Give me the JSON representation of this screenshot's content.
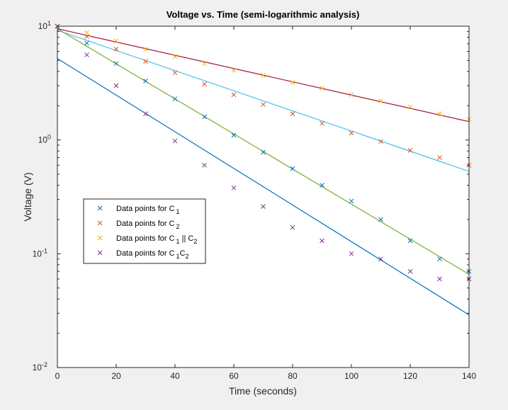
{
  "chart_data": {
    "type": "scatter",
    "title": "Voltage vs. Time (semi-logarithmic analysis)",
    "xlabel": "Time (seconds)",
    "ylabel": "Voltage (V)",
    "xlim": [
      0,
      140
    ],
    "ylim": [
      0.01,
      10
    ],
    "yscale": "log",
    "grid": false,
    "legend_position": "center-left",
    "x_ticks": [
      0,
      20,
      40,
      60,
      80,
      100,
      120,
      140
    ],
    "y_ticks": [
      {
        "base": "10",
        "exp": "-2",
        "value": 0.01
      },
      {
        "base": "10",
        "exp": "-1",
        "value": 0.1
      },
      {
        "base": "10",
        "exp": "0",
        "value": 1
      },
      {
        "base": "10",
        "exp": "1",
        "value": 10
      }
    ],
    "x": [
      0,
      10,
      20,
      30,
      40,
      50,
      60,
      70,
      80,
      90,
      100,
      110,
      120,
      130,
      140
    ],
    "series": [
      {
        "name": "Data points for C",
        "sub1": "1",
        "rest": "",
        "sub2": "",
        "color": "#0072BD",
        "values": [
          10,
          7.1,
          4.7,
          3.3,
          2.3,
          1.6,
          1.1,
          0.78,
          0.56,
          0.4,
          0.29,
          0.2,
          0.13,
          0.09,
          0.07
        ]
      },
      {
        "name": "Data points for C",
        "sub1": "2",
        "rest": "",
        "sub2": "",
        "color": "#D95319",
        "values": [
          10,
          8.1,
          6.3,
          4.9,
          3.9,
          3.1,
          2.5,
          2.05,
          1.7,
          1.4,
          1.15,
          0.97,
          0.81,
          0.7,
          0.6
        ]
      },
      {
        "name": "Data points for C",
        "sub1": "1",
        "rest": " || C",
        "sub2": "2",
        "color": "#EDB120",
        "values": [
          10,
          8.8,
          7.4,
          6.3,
          5.4,
          4.7,
          4.1,
          3.7,
          3.2,
          2.85,
          2.5,
          2.2,
          1.95,
          1.7,
          1.52
        ]
      },
      {
        "name": "Data points for C",
        "sub1": "1",
        "rest": "C",
        "sub2": "2",
        "color": "#7E2F8E",
        "values": [
          10,
          5.6,
          3.0,
          1.7,
          0.98,
          0.6,
          0.38,
          0.26,
          0.17,
          0.13,
          0.1,
          0.09,
          0.07,
          0.06,
          0.06
        ]
      }
    ],
    "fit_lines": [
      {
        "color": "#0072BD",
        "v0": 5.2,
        "v140": 0.029
      },
      {
        "color": "#4DBEEE",
        "v0": 9.2,
        "v140": 0.53
      },
      {
        "color": "#77AC30",
        "v0": 9.5,
        "v140": 0.066
      },
      {
        "color": "#A2142F",
        "v0": 9.5,
        "v140": 1.45
      }
    ]
  }
}
